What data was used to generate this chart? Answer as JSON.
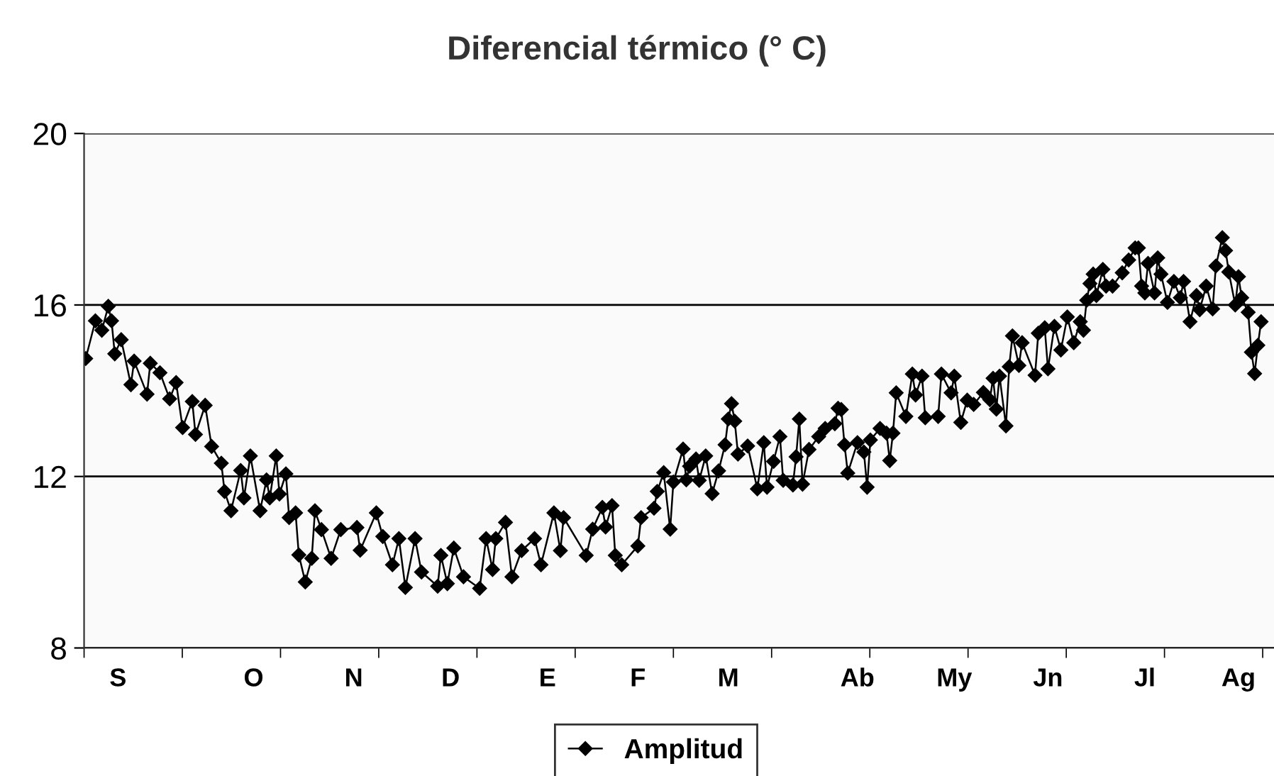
{
  "chart_data": {
    "type": "line",
    "title": "Diferencial térmico (° C)",
    "marker": "diamond",
    "line_style": "solid",
    "grid": "y",
    "legend": "bottom",
    "ylim": [
      8,
      20
    ],
    "yticks": [
      8,
      12,
      16,
      20
    ],
    "categories": [
      null,
      null,
      null,
      null,
      null,
      null,
      null,
      null,
      null,
      null,
      "S",
      null,
      null,
      null,
      null,
      null,
      null,
      null,
      null,
      null,
      null,
      null,
      null,
      null,
      null,
      null,
      null,
      null,
      null,
      null,
      null,
      null,
      null,
      null,
      null,
      null,
      null,
      null,
      null,
      null,
      null,
      null,
      null,
      null,
      null,
      null,
      null,
      null,
      null,
      null,
      null,
      null,
      "O",
      null,
      null,
      null,
      null,
      null,
      null,
      null,
      null,
      null,
      null,
      null,
      null,
      null,
      null,
      null,
      null,
      null,
      null,
      null,
      null,
      null,
      null,
      null,
      null,
      null,
      null,
      null,
      null,
      null,
      null,
      "N",
      null,
      null,
      null,
      null,
      null,
      null,
      null,
      null,
      null,
      null,
      null,
      null,
      null,
      null,
      null,
      null,
      null,
      null,
      null,
      null,
      null,
      null,
      null,
      null,
      null,
      null,
      null,
      null,
      null,
      "D",
      null,
      null,
      null,
      null,
      null,
      null,
      null,
      null,
      null,
      null,
      null,
      null,
      null,
      null,
      null,
      null,
      null,
      null,
      null,
      null,
      null,
      null,
      null,
      null,
      null,
      null,
      null,
      null,
      null,
      "E",
      null,
      null,
      null,
      null,
      null,
      null,
      null,
      null,
      null,
      null,
      null,
      null,
      null,
      null,
      null,
      null,
      null,
      null,
      null,
      null,
      null,
      null,
      null,
      null,
      null,
      null,
      null,
      "F",
      null,
      null,
      null,
      null,
      null,
      null,
      null,
      null,
      null,
      null,
      null,
      null,
      null,
      null,
      null,
      null,
      null,
      null,
      null,
      null,
      null,
      null,
      null,
      null,
      null,
      null,
      null,
      "M",
      null,
      null,
      null,
      null,
      null,
      null,
      null,
      null,
      null,
      null,
      null,
      null,
      null,
      null,
      null,
      null,
      null,
      null,
      null,
      null,
      null,
      null,
      null,
      null,
      null,
      null,
      null,
      null,
      null,
      null,
      null,
      null,
      null,
      null,
      null,
      null,
      null,
      null,
      null,
      "Ab",
      null,
      null,
      null,
      null,
      null,
      null,
      null,
      null,
      null,
      null,
      null,
      null,
      null,
      null,
      null,
      null,
      null,
      null,
      null,
      null,
      null,
      null,
      null,
      null,
      null,
      null,
      null,
      null,
      null,
      "My",
      null,
      null,
      null,
      null,
      null,
      null,
      null,
      null,
      null,
      null,
      null,
      null,
      null,
      null,
      null,
      null,
      null,
      null,
      null,
      null,
      null,
      null,
      null,
      null,
      null,
      null,
      null,
      null,
      "Jn",
      null,
      null,
      null,
      null,
      null,
      null,
      null,
      null,
      null,
      null,
      null,
      null,
      null,
      null,
      null,
      null,
      null,
      null,
      null,
      null,
      null,
      null,
      null,
      null,
      null,
      null,
      null,
      null,
      null,
      "Jl",
      null,
      null,
      null,
      null,
      null,
      null,
      null,
      null,
      null,
      null,
      null,
      null,
      null,
      null,
      null,
      null,
      null,
      null,
      null,
      null,
      null,
      null,
      null,
      null,
      null,
      null,
      null,
      null,
      "Ag",
      null,
      null,
      null,
      null,
      null,
      null,
      null
    ],
    "series": [
      {
        "name": "Amplitud",
        "color": "#000000",
        "values": [
          14.75,
          null,
          null,
          15.63,
          null,
          15.41,
          null,
          15.97,
          15.63,
          14.86,
          null,
          15.19,
          null,
          null,
          14.14,
          14.69,
          null,
          null,
          null,
          13.92,
          14.64,
          null,
          null,
          14.42,
          null,
          null,
          13.81,
          null,
          14.19,
          null,
          13.14,
          null,
          null,
          13.75,
          12.98,
          null,
          null,
          13.66,
          null,
          12.7,
          null,
          null,
          12.31,
          11.65,
          null,
          11.2,
          null,
          null,
          12.14,
          11.5,
          null,
          12.48,
          null,
          null,
          11.2,
          null,
          11.92,
          11.5,
          null,
          12.48,
          11.59,
          null,
          12.06,
          11.04,
          null,
          11.15,
          10.17,
          null,
          9.54,
          null,
          10.09,
          11.2,
          null,
          10.76,
          null,
          null,
          10.09,
          null,
          null,
          10.76,
          null,
          null,
          null,
          null,
          10.81,
          10.28,
          null,
          null,
          null,
          null,
          11.15,
          null,
          10.6,
          null,
          null,
          9.94,
          null,
          10.55,
          null,
          9.41,
          null,
          null,
          10.55,
          null,
          9.77,
          null,
          null,
          null,
          null,
          9.44,
          10.16,
          null,
          9.5,
          null,
          10.33,
          null,
          null,
          9.66,
          null,
          null,
          null,
          null,
          9.39,
          null,
          10.55,
          null,
          9.83,
          10.55,
          null,
          null,
          10.93,
          null,
          9.66,
          null,
          null,
          10.27,
          null,
          null,
          null,
          10.55,
          null,
          9.94,
          null,
          null,
          null,
          11.15,
          null,
          10.27,
          11.04,
          null,
          null,
          null,
          null,
          null,
          null,
          10.16,
          null,
          10.77,
          null,
          null,
          11.28,
          10.82,
          null,
          11.32,
          10.16,
          null,
          9.94,
          null,
          null,
          null,
          null,
          10.38,
          11.04,
          null,
          null,
          null,
          11.26,
          11.65,
          null,
          12.09,
          null,
          10.77,
          11.87,
          null,
          null,
          12.64,
          11.92,
          12.24,
          null,
          12.41,
          11.91,
          null,
          12.48,
          null,
          11.6,
          null,
          12.13,
          null,
          12.74,
          13.34,
          13.7,
          13.29,
          12.52,
          null,
          null,
          12.71,
          null,
          null,
          11.71,
          null,
          12.79,
          11.75,
          null,
          12.35,
          null,
          12.93,
          11.91,
          null,
          null,
          11.8,
          12.46,
          13.34,
          11.82,
          null,
          12.63,
          null,
          null,
          12.93,
          null,
          13.12,
          null,
          null,
          13.23,
          13.59,
          13.56,
          12.74,
          12.08,
          null,
          null,
          12.79,
          null,
          12.57,
          11.75,
          12.85,
          null,
          null,
          13.12,
          null,
          13.01,
          12.37,
          13.01,
          13.95,
          null,
          null,
          13.4,
          null,
          14.39,
          13.9,
          null,
          14.34,
          13.37,
          null,
          null,
          null,
          13.4,
          14.39,
          null,
          null,
          13.95,
          14.34,
          null,
          13.26,
          null,
          13.78,
          null,
          13.68,
          null,
          null,
          13.96,
          null,
          13.79,
          14.29,
          13.57,
          14.34,
          null,
          13.18,
          14.56,
          15.28,
          null,
          14.59,
          15.12,
          null,
          null,
          null,
          14.36,
          15.34,
          null,
          15.47,
          14.51,
          null,
          15.5,
          null,
          14.95,
          null,
          15.72,
          null,
          15.12,
          null,
          15.61,
          15.41,
          16.11,
          16.5,
          16.72,
          16.22,
          null,
          16.83,
          16.44,
          null,
          16.44,
          null,
          null,
          16.75,
          null,
          17.05,
          null,
          17.33,
          17.33,
          16.44,
          16.28,
          16.97,
          null,
          16.28,
          17.1,
          16.72,
          null,
          16.06,
          null,
          16.55,
          null,
          16.17,
          16.55,
          null,
          15.61,
          null,
          16.22,
          15.89,
          null,
          16.44,
          null,
          15.91,
          16.91,
          null,
          17.57,
          17.27,
          16.77,
          null,
          16.0,
          16.66,
          16.17,
          null,
          15.83,
          14.9,
          14.4,
          15.06,
          15.61
        ]
      }
    ]
  }
}
